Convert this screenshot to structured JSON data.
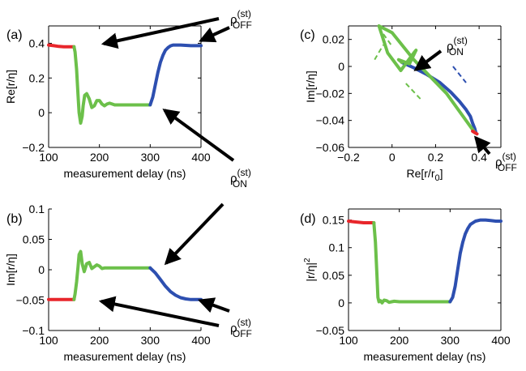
{
  "colors": {
    "red": "#e8262b",
    "green": "#6cc04a",
    "blue": "#2d4fb0",
    "arrow": "#000000"
  },
  "panels": [
    {
      "id": "a",
      "letter": "(a)",
      "xlabel": "measurement delay (ns)",
      "ylabel": "Re[r/η]",
      "ylabel_sup": "",
      "xlim": [
        100,
        400
      ],
      "ylim": [
        -0.2,
        0.5
      ],
      "xticks": [
        "100",
        "200",
        "300",
        "400"
      ],
      "xtick_values": [
        100,
        200,
        300,
        400
      ],
      "yticks": [
        "−0.2",
        "0",
        "0.2",
        "0.4"
      ],
      "ytick_values": [
        -0.2,
        0,
        0.2,
        0.4
      ],
      "box": "full"
    },
    {
      "id": "b",
      "letter": "(b)",
      "xlabel": "measurement delay (ns)",
      "ylabel": "Im[r/η]",
      "ylabel_sup": "",
      "xlim": [
        100,
        400
      ],
      "ylim": [
        -0.1,
        0.1
      ],
      "xticks": [
        "100",
        "200",
        "300",
        "400"
      ],
      "xtick_values": [
        100,
        200,
        300,
        400
      ],
      "yticks": [
        "−0.1",
        "−0.05",
        "0",
        "0.05",
        "0.1"
      ],
      "ytick_values": [
        -0.1,
        -0.05,
        0,
        0.05,
        0.1
      ],
      "box": "open"
    },
    {
      "id": "c",
      "letter": "(c)",
      "xlabel": "Re[r/r",
      "xlabel_sub": "0",
      "xlabel_end": "]",
      "ylabel": "Im[r/η]",
      "ylabel_sup": "",
      "xlim": [
        -0.2,
        0.5
      ],
      "ylim": [
        -0.06,
        0.03
      ],
      "xticks": [
        "−0.2",
        "0",
        "0.2",
        "0.4"
      ],
      "xtick_values": [
        -0.2,
        0,
        0.2,
        0.4
      ],
      "yticks": [
        "−0.06",
        "−0.04",
        "−0.02",
        "0",
        "0.02"
      ],
      "ytick_values": [
        -0.06,
        -0.04,
        -0.02,
        0,
        0.02
      ],
      "box": "full"
    },
    {
      "id": "d",
      "letter": "(d)",
      "xlabel": "measurement delay (ns)",
      "ylabel": "|r/η|",
      "ylabel_sup": "2",
      "xlim": [
        100,
        400
      ],
      "ylim": [
        -0.05,
        0.17
      ],
      "xticks": [
        "100",
        "200",
        "300",
        "400"
      ],
      "xtick_values": [
        100,
        200,
        300,
        400
      ],
      "yticks": [
        "−0.05",
        "0",
        "0.05",
        "0.1",
        "0.15"
      ],
      "ytick_values": [
        -0.05,
        0,
        0.05,
        0.1,
        0.15
      ],
      "box": "full"
    }
  ],
  "annotations": {
    "off_top": {
      "base": "ρ",
      "sup": "(st)",
      "sub": "OFF"
    },
    "on_mid": {
      "base": "ρ",
      "sup": "(st)",
      "sub": "ON"
    },
    "off_bottom": {
      "base": "ρ",
      "sup": "(st)",
      "sub": "OFF"
    },
    "on_c": {
      "base": "ρ",
      "sup": "(st)",
      "sub": "ON"
    },
    "off_c": {
      "base": "ρ",
      "sup": "(st)",
      "sub": "OFF"
    }
  },
  "chart_data": [
    {
      "panel": "a",
      "type": "line",
      "xlabel": "measurement delay (ns)",
      "ylabel": "Re[r/η]",
      "xlim": [
        100,
        400
      ],
      "ylim": [
        -0.2,
        0.5
      ],
      "grid": false,
      "series": [
        {
          "color": "red",
          "x": [
            100,
            110,
            120,
            130,
            140,
            150
          ],
          "y": [
            0.39,
            0.386,
            0.382,
            0.38,
            0.38,
            0.38
          ]
        },
        {
          "color": "green",
          "x": [
            150,
            152,
            155,
            158,
            160,
            163,
            166,
            168,
            171,
            175,
            180,
            185,
            190,
            195,
            200,
            205,
            210,
            215,
            220,
            225,
            230,
            240,
            250,
            260,
            270,
            280,
            290,
            300
          ],
          "y": [
            0.38,
            0.35,
            0.25,
            0.1,
            0.0,
            -0.06,
            -0.02,
            0.04,
            0.1,
            0.11,
            0.08,
            0.03,
            0.04,
            0.07,
            0.07,
            0.05,
            0.04,
            0.05,
            0.055,
            0.05,
            0.045,
            0.045,
            0.045,
            0.045,
            0.045,
            0.045,
            0.045,
            0.045
          ]
        },
        {
          "color": "blue",
          "x": [
            300,
            305,
            310,
            315,
            320,
            325,
            330,
            335,
            340,
            345,
            350,
            360,
            370,
            380,
            390,
            400
          ],
          "y": [
            0.045,
            0.09,
            0.16,
            0.23,
            0.29,
            0.33,
            0.36,
            0.375,
            0.385,
            0.39,
            0.39,
            0.39,
            0.388,
            0.386,
            0.386,
            0.386
          ]
        }
      ]
    },
    {
      "panel": "b",
      "type": "line",
      "xlabel": "measurement delay (ns)",
      "ylabel": "Im[r/η]",
      "xlim": [
        100,
        400
      ],
      "ylim": [
        -0.1,
        0.1
      ],
      "grid": false,
      "series": [
        {
          "color": "red",
          "x": [
            100,
            110,
            120,
            130,
            140,
            150
          ],
          "y": [
            -0.049,
            -0.049,
            -0.049,
            -0.049,
            -0.049,
            -0.049
          ]
        },
        {
          "color": "green",
          "x": [
            150,
            152,
            155,
            158,
            160,
            163,
            166,
            170,
            175,
            180,
            185,
            190,
            195,
            200,
            205,
            210,
            220,
            230,
            240,
            250,
            260,
            270,
            280,
            290,
            300
          ],
          "y": [
            -0.049,
            -0.04,
            -0.02,
            0.005,
            0.025,
            0.03,
            0.01,
            -0.003,
            0.01,
            0.012,
            0.002,
            0.005,
            0.008,
            0.006,
            0.002,
            0.003,
            0.003,
            0.003,
            0.003,
            0.003,
            0.003,
            0.003,
            0.003,
            0.003,
            0.003
          ]
        },
        {
          "color": "blue",
          "x": [
            300,
            310,
            320,
            330,
            340,
            350,
            360,
            370,
            380,
            390,
            400
          ],
          "y": [
            0.003,
            -0.005,
            -0.016,
            -0.027,
            -0.036,
            -0.042,
            -0.046,
            -0.048,
            -0.049,
            -0.049,
            -0.049
          ]
        }
      ]
    },
    {
      "panel": "c",
      "type": "line",
      "xlabel": "Re[r/r0]",
      "ylabel": "Im[r/η]",
      "xlim": [
        -0.2,
        0.5
      ],
      "ylim": [
        -0.06,
        0.03
      ],
      "grid": false,
      "series": [
        {
          "color": "blue",
          "x": [
            0.045,
            0.1,
            0.16,
            0.22,
            0.27,
            0.31,
            0.34,
            0.36,
            0.37,
            0.38,
            0.385
          ],
          "y": [
            0.003,
            -0.001,
            -0.006,
            -0.012,
            -0.019,
            -0.026,
            -0.032,
            -0.037,
            -0.042,
            -0.046,
            -0.049
          ]
        },
        {
          "color": "green",
          "x": [
            0.38,
            0.25,
            0.1,
            0.0,
            -0.06,
            -0.02,
            0.04,
            0.1,
            0.11,
            0.08,
            0.03,
            0.045
          ],
          "y": [
            -0.049,
            -0.02,
            0.005,
            0.025,
            0.03,
            0.01,
            -0.003,
            0.01,
            0.012,
            0.002,
            0.005,
            0.003
          ]
        },
        {
          "color": "red",
          "x": [
            0.37,
            0.38,
            0.39
          ],
          "y": [
            -0.048,
            -0.049,
            -0.05
          ]
        }
      ]
    },
    {
      "panel": "d",
      "type": "line",
      "xlabel": "measurement delay (ns)",
      "ylabel": "|r/η|²",
      "xlim": [
        100,
        400
      ],
      "ylim": [
        -0.05,
        0.17
      ],
      "grid": false,
      "series": [
        {
          "color": "red",
          "x": [
            100,
            110,
            120,
            130,
            140,
            150
          ],
          "y": [
            0.148,
            0.147,
            0.146,
            0.145,
            0.145,
            0.145
          ]
        },
        {
          "color": "green",
          "x": [
            150,
            153,
            156,
            158,
            160,
            163,
            166,
            170,
            175,
            180,
            185,
            190,
            200,
            210,
            220,
            240,
            260,
            280,
            300
          ],
          "y": [
            0.145,
            0.11,
            0.05,
            0.01,
            0.002,
            0.004,
            0.0,
            0.005,
            0.004,
            0.001,
            0.002,
            0.003,
            0.002,
            0.002,
            0.002,
            0.002,
            0.002,
            0.002,
            0.002
          ]
        },
        {
          "color": "blue",
          "x": [
            300,
            305,
            310,
            315,
            320,
            325,
            330,
            335,
            340,
            350,
            360,
            370,
            380,
            390,
            400
          ],
          "y": [
            0.002,
            0.01,
            0.03,
            0.06,
            0.09,
            0.11,
            0.125,
            0.135,
            0.142,
            0.148,
            0.15,
            0.15,
            0.149,
            0.148,
            0.148
          ]
        }
      ]
    }
  ]
}
